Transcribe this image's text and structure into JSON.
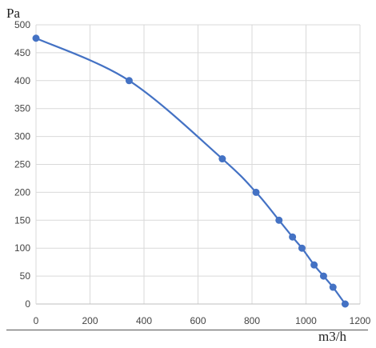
{
  "chart_data": {
    "type": "line",
    "ylabel": "Pa",
    "xlabel": "m3/h",
    "xlim": [
      0,
      1200
    ],
    "ylim": [
      0,
      500
    ],
    "x_ticks": [
      "0",
      "200",
      "400",
      "600",
      "800",
      "1000",
      "1200"
    ],
    "y_ticks": [
      "0",
      "50",
      "100",
      "150",
      "200",
      "250",
      "300",
      "350",
      "400",
      "450",
      "500"
    ],
    "grid": true,
    "series": [
      {
        "color": "#4472c4",
        "smooth": true,
        "markers": true,
        "x": [
          0,
          345,
          690,
          815,
          900,
          950,
          985,
          1030,
          1065,
          1100,
          1145
        ],
        "y": [
          476,
          400,
          260,
          200,
          150,
          120,
          100,
          70,
          50,
          30,
          0
        ]
      }
    ]
  }
}
